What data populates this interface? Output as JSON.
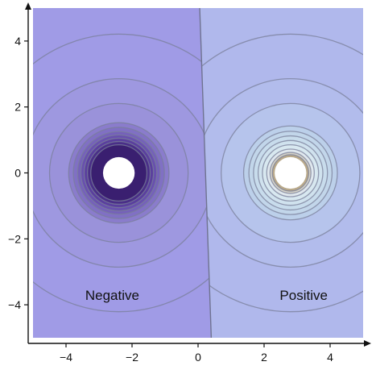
{
  "chart_data": {
    "type": "contour",
    "title": "",
    "xlabel": "",
    "ylabel": "",
    "xlim": [
      -5,
      5
    ],
    "ylim": [
      -5,
      5
    ],
    "x_ticks": [
      -4,
      -2,
      0,
      2,
      4
    ],
    "y_ticks": [
      -4,
      -2,
      0,
      2,
      4
    ],
    "x_tick_labels": [
      "−4",
      "−2",
      "0",
      "2",
      "4"
    ],
    "y_tick_labels": [
      "−4",
      "−2",
      "0",
      "2",
      "4"
    ],
    "grid": false,
    "regions": [
      {
        "label": "Negative",
        "label_pos": [
          -2.6,
          -3.7
        ],
        "color": "#a09be6"
      },
      {
        "label": "Positive",
        "label_pos": [
          3.2,
          -3.7
        ],
        "color": "#b0b8ec"
      }
    ],
    "charges": [
      {
        "name": "negative",
        "x": -2.4,
        "y": 0,
        "hole_radius": 0.48
      },
      {
        "name": "positive",
        "x": 2.8,
        "y": 0,
        "hole_radius": 0.48
      }
    ],
    "boundary_line": {
      "x_top": 0.05,
      "x_bottom": 0.4
    },
    "contours_negative": [
      {
        "r": 0.85,
        "color": "#3a1f70"
      },
      {
        "r": 0.95,
        "color": "#4a2f88"
      },
      {
        "r": 1.05,
        "color": "#5a3f9e"
      },
      {
        "r": 1.15,
        "color": "#6850ae"
      },
      {
        "r": 1.25,
        "color": "#7561ba"
      },
      {
        "r": 1.38,
        "color": "#8070c4"
      },
      {
        "r": 1.52,
        "color": "#8a7ccc"
      },
      {
        "r": 2.1,
        "color": "#9a92da"
      },
      {
        "r": 2.85,
        "color": "#9e98e0"
      },
      {
        "r": 4.2,
        "color": "#a09be6"
      }
    ],
    "contours_positive": [
      {
        "r": 0.55,
        "color": "#b9a98a"
      },
      {
        "r": 0.62,
        "color": "#d5d3c8"
      },
      {
        "r": 0.72,
        "color": "#e0e8ee"
      },
      {
        "r": 0.85,
        "color": "#d8e8f0"
      },
      {
        "r": 0.98,
        "color": "#d0e2ee"
      },
      {
        "r": 1.12,
        "color": "#c8dcec"
      },
      {
        "r": 1.26,
        "color": "#c2d6ea"
      },
      {
        "r": 1.42,
        "color": "#bcd0ea"
      },
      {
        "r": 2.1,
        "color": "#b6c4ec"
      },
      {
        "r": 2.85,
        "color": "#b2bcec"
      },
      {
        "r": 4.2,
        "color": "#b0b8ec"
      }
    ],
    "contour_stroke": "#7a7f9a"
  }
}
